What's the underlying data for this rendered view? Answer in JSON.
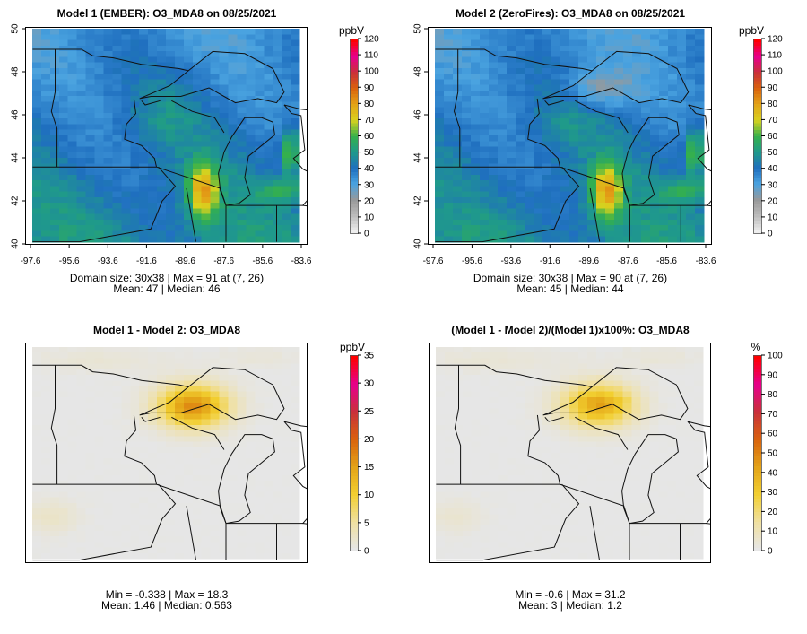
{
  "chart_data": [
    {
      "type": "heatmap",
      "title": "Model 1 (EMBER): O3_MDA8 on 08/25/2021",
      "field": "model1",
      "x_ticks": [
        "-97.6",
        "-95.6",
        "-93.6",
        "-91.6",
        "-89.6",
        "-87.6",
        "-85.6",
        "-83.6"
      ],
      "y_ticks": [
        "40",
        "42",
        "44",
        "46",
        "48",
        "50"
      ],
      "xlim": [
        -97.6,
        -83.6
      ],
      "ylim": [
        40,
        50
      ],
      "grid": [
        30,
        38
      ],
      "stats": [
        "Domain size: 30x38 | Max = 91 at (7, 26)",
        "Mean: 47 |  Median: 46"
      ],
      "colorbar": {
        "unit": "ppbV",
        "range": [
          0,
          120
        ],
        "labels": [
          "0",
          "10",
          "20",
          "30",
          "40",
          "50",
          "60",
          "70",
          "80",
          "90",
          "100",
          "110",
          "120"
        ],
        "palette": [
          "#eeeeee",
          "#bdbdbd",
          "#999999",
          "#4aa3e0",
          "#1f6fbf",
          "#1f9a8a",
          "#35b14a",
          "#d9d21e",
          "#e3a317",
          "#d9620d",
          "#c9303a",
          "#e6008c",
          "#ff0000"
        ]
      }
    },
    {
      "type": "heatmap",
      "title": "Model 2 (ZeroFires): O3_MDA8 on 08/25/2021",
      "field": "model2",
      "x_ticks": [
        "-97.6",
        "-95.6",
        "-93.6",
        "-91.6",
        "-89.6",
        "-87.6",
        "-85.6",
        "-83.6"
      ],
      "y_ticks": [
        "40",
        "42",
        "44",
        "46",
        "48",
        "50"
      ],
      "xlim": [
        -97.6,
        -83.6
      ],
      "ylim": [
        40,
        50
      ],
      "grid": [
        30,
        38
      ],
      "stats": [
        "Domain size: 30x38 | Max = 90 at (7, 26)",
        "Mean: 45 |  Median: 44"
      ],
      "colorbar": {
        "unit": "ppbV",
        "range": [
          0,
          120
        ],
        "labels": [
          "0",
          "10",
          "20",
          "30",
          "40",
          "50",
          "60",
          "70",
          "80",
          "90",
          "100",
          "110",
          "120"
        ],
        "palette": [
          "#eeeeee",
          "#bdbdbd",
          "#999999",
          "#4aa3e0",
          "#1f6fbf",
          "#1f9a8a",
          "#35b14a",
          "#d9d21e",
          "#e3a317",
          "#d9620d",
          "#c9303a",
          "#e6008c",
          "#ff0000"
        ]
      }
    },
    {
      "type": "heatmap",
      "title": "Model 1 - Model 2: O3_MDA8",
      "field": "diff",
      "x_ticks": [],
      "y_ticks": [],
      "grid": [
        30,
        38
      ],
      "stats": [
        "Min = -0.338 | Max = 18.3",
        "Mean: 1.46 |  Median: 0.563"
      ],
      "colorbar": {
        "unit": "ppbV",
        "range": [
          0,
          35
        ],
        "labels": [
          "0",
          "5",
          "10",
          "15",
          "20",
          "25",
          "30",
          "35"
        ],
        "palette": [
          "#e6e6e6",
          "#f0e0a0",
          "#f2cf30",
          "#e3a317",
          "#d9620d",
          "#c9303a",
          "#e6008c",
          "#ff0000"
        ]
      }
    },
    {
      "type": "heatmap",
      "title": "(Model 1 - Model 2)/(Model 1)x100%: O3_MDA8",
      "field": "pct",
      "x_ticks": [],
      "y_ticks": [],
      "grid": [
        30,
        38
      ],
      "stats": [
        "Min = -0.6 | Max = 31.2",
        "Mean: 3 |  Median: 1.2"
      ],
      "colorbar": {
        "unit": "%",
        "range": [
          0,
          100
        ],
        "labels": [
          "0",
          "10",
          "20",
          "30",
          "40",
          "50",
          "60",
          "70",
          "80",
          "90",
          "100"
        ],
        "palette": [
          "#e6e6e6",
          "#f0e0a0",
          "#f2cf30",
          "#e3a317",
          "#d9620d",
          "#c9303a",
          "#e6008c",
          "#ff0000"
        ]
      }
    }
  ]
}
